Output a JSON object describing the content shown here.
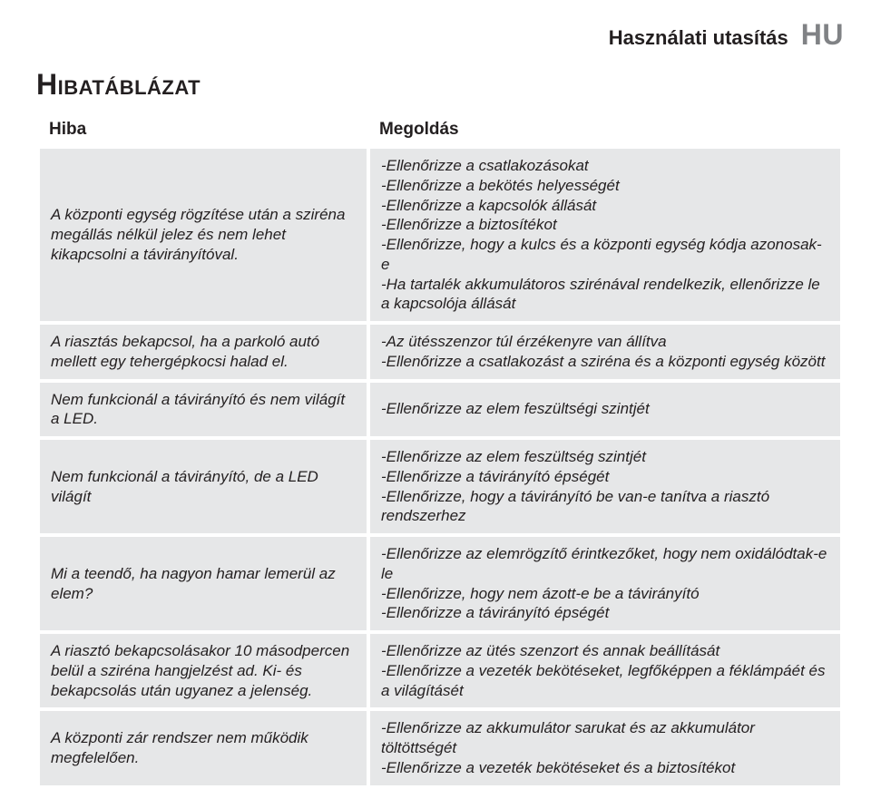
{
  "header": {
    "label": "Használati utasítás",
    "lang": "HU"
  },
  "title": "Hibatáblázat",
  "columns": {
    "left": "Hiba",
    "right": "Megoldás"
  },
  "rows": [
    {
      "problem": "A központi egység rögzítése után a sziréna megállás nélkül jelez és nem lehet kikapcsolni a távirányítóval.",
      "solution": "-Ellenőrizze a csatlakozásokat\n-Ellenőrizze a bekötés helyességét\n-Ellenőrizze a kapcsolók állását\n-Ellenőrizze a biztosítékot\n-Ellenőrizze, hogy a kulcs és a központi egység kódja azonosak-e\n-Ha tartalék akkumulátoros szirénával rendelkezik, ellenőrizze le a kapcsolója állását"
    },
    {
      "problem": "A riasztás bekapcsol, ha a parkoló autó mellett egy tehergépkocsi halad el.",
      "solution": "-Az ütésszenzor túl érzékenyre van állítva\n-Ellenőrizze a csatlakozást a sziréna és a központi egység között"
    },
    {
      "problem": "Nem funkcionál a távirányító és nem világít a LED.",
      "solution": "-Ellenőrizze az elem feszültségi szintjét"
    },
    {
      "problem": "Nem funkcionál a távirányító, de a LED világít",
      "solution": "-Ellenőrizze az elem feszültség szintjét\n-Ellenőrizze a távirányító épségét\n-Ellenőrizze, hogy a távirányító be van-e tanítva a riasztó rendszerhez"
    },
    {
      "problem": "Mi a teendő, ha nagyon hamar lemerül az elem?",
      "solution": "-Ellenőrizze az elemrögzítő érintkezőket, hogy nem oxidálódtak-e le\n-Ellenőrizze, hogy nem ázott-e be a távirányító\n-Ellenőrizze a távirányító épségét"
    },
    {
      "problem": "A riasztó bekapcsolásakor 10 másodpercen belül a sziréna hangjelzést ad. Ki- és bekapcsolás után ugyanez a jelenség.",
      "solution": "-Ellenőrizze az ütés szenzort és annak beállítását\n-Ellenőrizze a vezeték bekötéseket, legfőképpen a féklámpáét és a világításét"
    },
    {
      "problem": "A központi zár rendszer nem működik megfelelően.",
      "solution": "-Ellenőrizze az akkumulátor sarukat és az akkumulátor töltöttségét\n-Ellenőrizze a vezeték bekötéseket és a biztosítékot"
    }
  ]
}
